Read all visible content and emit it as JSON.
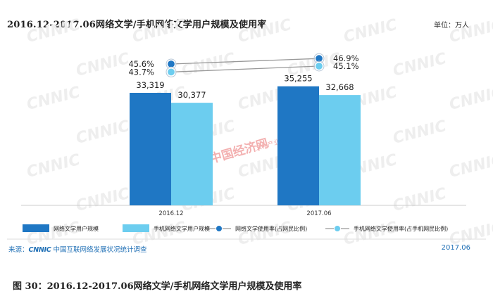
{
  "title": "2016.12-2017.06网络文学/手机网络文学用户规模及使用率",
  "unit": "单位：万人",
  "source": {
    "prefix": "来源：",
    "logo": "CNNIC",
    "text": "中国互联网络发展状况统计调查",
    "date": "2017.06"
  },
  "caption": "图 30：2016.12-2017.06网络文学/手机网络文学用户规模及使用率",
  "watermark": {
    "brand": "CNNIC",
    "stamp": "中国经济网",
    "stamp_sub": "文化产业频道"
  },
  "colors": {
    "bar_dark": "#1f77c4",
    "bar_light": "#6ccdef",
    "line_dark": "#1f77c4",
    "line_light": "#6ccdef",
    "line_stroke": "#999999",
    "axis": "#cccccc",
    "source": "#1f6fb5"
  },
  "chart_data": {
    "type": "bar",
    "categories": [
      "2016.12",
      "2017.06"
    ],
    "series": [
      {
        "name": "网络文学用户规模",
        "values": [
          33319,
          35255
        ],
        "labels": [
          "33,319",
          "35,255"
        ]
      },
      {
        "name": "手机网络文学用户规模",
        "values": [
          30377,
          32668
        ],
        "labels": [
          "30,377",
          "32,668"
        ]
      }
    ],
    "line_series": [
      {
        "name": "网络文学使用率(占网民比例)",
        "values": [
          45.6,
          46.9
        ],
        "labels": [
          "45.6%",
          "46.9%"
        ]
      },
      {
        "name": "手机网络文学使用率(占手机网民比例)",
        "values": [
          43.7,
          45.1
        ],
        "labels": [
          "43.7%",
          "45.1%"
        ]
      }
    ],
    "ylabel": "",
    "legend_position": "bottom",
    "grid": false
  }
}
